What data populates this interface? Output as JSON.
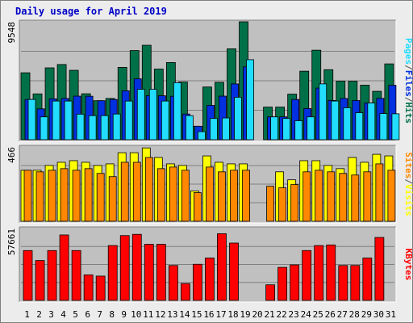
{
  "page_title": "Daily usage for April 2019",
  "chart_data": {
    "type": "bar",
    "title": "Daily usage for April 2019",
    "categories": [
      "1",
      "2",
      "3",
      "4",
      "5",
      "6",
      "7",
      "8",
      "9",
      "10",
      "11",
      "12",
      "13",
      "14",
      "15",
      "16",
      "17",
      "18",
      "19",
      "20",
      "21",
      "22",
      "23",
      "24",
      "25",
      "26",
      "27",
      "28",
      "29",
      "30",
      "31"
    ],
    "weekend_categories": [
      "6",
      "7",
      "13",
      "14",
      "20",
      "21",
      "27",
      "28"
    ],
    "colors": {
      "hits": "#007048",
      "files": "#0030e0",
      "pages": "#22ddff",
      "visits": "#ffff00",
      "sites": "#ff8800",
      "kbytes": "#ff0000",
      "weekday_tick": "#000000",
      "weekend_tick": "#007048"
    },
    "panels": [
      {
        "name": "hits-files-pages",
        "scale_max_label": "9548",
        "ylim": [
          0,
          9548
        ],
        "legend": [
          {
            "label": "Pages",
            "color": "#22ddff"
          },
          {
            "label": "/",
            "color": "#555555"
          },
          {
            "label": "Files",
            "color": "#0030e0"
          },
          {
            "label": "/",
            "color": "#555555"
          },
          {
            "label": "Hits",
            "color": "#007048"
          }
        ],
        "series": [
          {
            "name": "Hits",
            "values": [
              5420,
              3710,
              5820,
              6090,
              5620,
              3720,
              3160,
              3340,
              5860,
              7220,
              7650,
              5720,
              6250,
              4670,
              1090,
              4270,
              4650,
              7360,
              9548,
              0,
              2640,
              2640,
              3690,
              5550,
              7250,
              5670,
              4740,
              4730,
              4420,
              3920,
              6140
            ]
          },
          {
            "name": "Files",
            "values": [
              3260,
              2500,
              3310,
              3340,
              3530,
              3520,
              3160,
              3260,
              3960,
              4930,
              3560,
              3560,
              3520,
              2080,
              1090,
              2780,
              3530,
              4520,
              5900,
              0,
              1850,
              1850,
              3260,
              2520,
              4180,
              3180,
              3340,
              3170,
              2970,
              3350,
              4410
            ]
          },
          {
            "name": "Pages",
            "values": [
              3260,
              1850,
              3130,
              3130,
              2070,
              1950,
              1950,
              2080,
              3130,
              4080,
              4080,
              3130,
              4620,
              1950,
              650,
              1720,
              1760,
              3440,
              6480,
              0,
              1850,
              1720,
              1540,
              1850,
              4520,
              3130,
              2590,
              2190,
              2970,
              2120,
              2100
            ]
          }
        ]
      },
      {
        "name": "visits-sites",
        "scale_max_label": "466",
        "ylim": [
          0,
          466
        ],
        "legend": [
          {
            "label": "Sites",
            "color": "#ff8800"
          },
          {
            "label": "/",
            "color": "#555555"
          },
          {
            "label": "Visits",
            "color": "#ffff00"
          }
        ],
        "series": [
          {
            "name": "Visits",
            "values": [
              320,
              320,
              350,
              370,
              380,
              370,
              350,
              360,
              430,
              430,
              460,
              400,
              360,
              350,
              190,
              410,
              370,
              360,
              360,
              0,
              0,
              310,
              260,
              380,
              380,
              350,
              330,
              400,
              370,
              420,
              410
            ]
          },
          {
            "name": "Sites",
            "values": [
              320,
              310,
              320,
              330,
              320,
              330,
              300,
              280,
              370,
              370,
              400,
              330,
              340,
              320,
              180,
              340,
              310,
              320,
              320,
              0,
              220,
              210,
              230,
              310,
              320,
              310,
              300,
              290,
              310,
              360,
              320
            ]
          }
        ]
      },
      {
        "name": "kbytes",
        "scale_max_label": "57661",
        "ylim": [
          0,
          57661
        ],
        "legend": [
          {
            "label": "KBytes",
            "color": "#ff0000"
          }
        ],
        "series": [
          {
            "name": "KBytes",
            "values": [
              40000,
              32000,
              40000,
              52500,
              40000,
              20500,
              19500,
              44000,
              52000,
              53000,
              45000,
              45000,
              28000,
              13500,
              29000,
              34000,
              53500,
              46000,
              0,
              0,
              12500,
              26500,
              28500,
              40000,
              44000,
              44500,
              28000,
              28000,
              34000,
              50500,
              0
            ]
          }
        ]
      }
    ]
  }
}
